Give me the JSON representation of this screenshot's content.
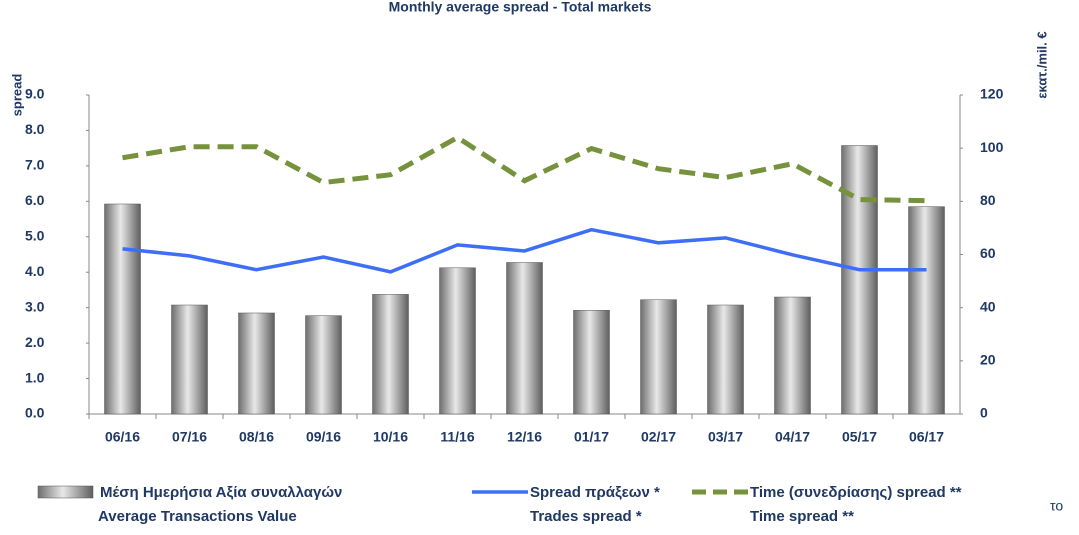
{
  "chart_data": {
    "type": "bar-line",
    "title": "Monthly average spread - Total markets",
    "ylabel": "spread",
    "y2label": "εκατ./mil. €",
    "categories": [
      "06/16",
      "07/16",
      "08/16",
      "09/16",
      "10/16",
      "11/16",
      "12/16",
      "01/17",
      "02/17",
      "03/17",
      "04/17",
      "05/17",
      "06/17"
    ],
    "ylim": [
      0,
      9
    ],
    "yticks": [
      {
        "value": 0,
        "label": "0.0"
      },
      {
        "value": 1,
        "label": "1.0"
      },
      {
        "value": 2,
        "label": "2.0"
      },
      {
        "value": 3,
        "label": "3.0"
      },
      {
        "value": 4,
        "label": "4.0"
      },
      {
        "value": 5,
        "label": "5.0"
      },
      {
        "value": 6,
        "label": "6.0"
      },
      {
        "value": 7,
        "label": "7.0"
      },
      {
        "value": 8,
        "label": "8.0"
      },
      {
        "value": 9,
        "label": "9.0"
      }
    ],
    "y2lim": [
      0,
      120
    ],
    "y2ticks": [
      0,
      20,
      40,
      60,
      80,
      100,
      120
    ],
    "series": [
      {
        "name": "Μέση Ημερήσια Αξία συναλλαγών",
        "name_en": "Average Transactions Value",
        "kind": "bar",
        "axis": "y2",
        "color": "#a6a6a6",
        "values": [
          79,
          41,
          38,
          37,
          45,
          55,
          57,
          39,
          43,
          41,
          44,
          101,
          78
        ]
      },
      {
        "name": "Spread πράξεων *",
        "name_en": "Trades spread *",
        "kind": "line",
        "color": "#3d6ef5",
        "values": [
          4.66,
          4.46,
          4.07,
          4.43,
          4.01,
          4.77,
          4.6,
          5.2,
          4.83,
          4.97,
          4.49,
          4.07,
          4.07
        ]
      },
      {
        "name": "Time  (συνεδρίασης) spread **",
        "name_en": "Time spread **",
        "kind": "dashed",
        "color": "#76923c",
        "values": [
          7.23,
          7.54,
          7.54,
          6.53,
          6.75,
          7.8,
          6.58,
          7.49,
          6.92,
          6.67,
          7.06,
          6.05,
          6.02
        ]
      }
    ],
    "note": "το"
  }
}
